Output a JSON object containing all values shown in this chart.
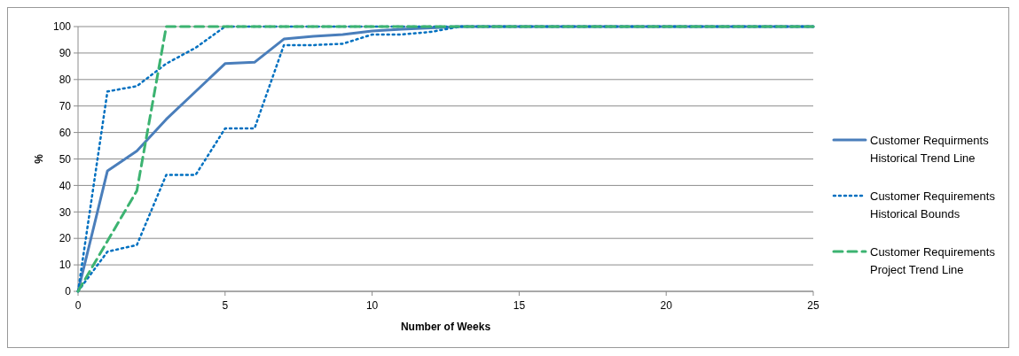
{
  "chart_data": {
    "type": "line",
    "xlabel": "Number of Weeks",
    "ylabel": "%",
    "x": [
      0,
      1,
      2,
      3,
      4,
      5,
      6,
      7,
      8,
      9,
      10,
      11,
      12,
      13,
      14,
      15,
      16,
      17,
      18,
      19,
      20,
      21,
      22,
      23,
      24,
      25
    ],
    "xlim": [
      0,
      25
    ],
    "xticks": [
      0,
      5,
      10,
      15,
      20,
      25
    ],
    "ylim": [
      0,
      100
    ],
    "yticks": [
      0,
      10,
      20,
      30,
      40,
      50,
      60,
      70,
      80,
      90,
      100
    ],
    "grid": "y",
    "legend": "right",
    "series": [
      {
        "name": "Customer Requirments Historical Trend Line",
        "color": "#4a7ebb",
        "line_style": "solid",
        "values": [
          0,
          45.5,
          53,
          65,
          75.5,
          86,
          86.5,
          95.3,
          96.3,
          97,
          98.3,
          99,
          99.5,
          100,
          100,
          100,
          100,
          100,
          100,
          100,
          100,
          100,
          100,
          100,
          100,
          100
        ]
      },
      {
        "name": "Customer Requirements Historical Bounds",
        "color": "#0070c0",
        "line_style": "dotted",
        "values": [
          0,
          75.5,
          77.5,
          86,
          92,
          100,
          100,
          100,
          100,
          100,
          100,
          100,
          100,
          100,
          100,
          100,
          100,
          100,
          100,
          100,
          100,
          100,
          100,
          100,
          100,
          100
        ]
      },
      {
        "color": "#0070c0",
        "line_style": "dotted",
        "values": [
          0,
          15,
          17.5,
          44,
          44,
          61.5,
          61.5,
          93,
          93,
          93.5,
          97,
          97,
          98,
          100,
          100,
          100,
          100,
          100,
          100,
          100,
          100,
          100,
          100,
          100,
          100,
          100
        ]
      },
      {
        "name": "Customer Requirements Project Trend Line",
        "color": "#3cb371",
        "line_style": "dashed",
        "values": [
          0,
          19,
          38,
          100,
          100,
          100,
          100,
          100,
          100,
          100,
          100,
          100,
          100,
          100,
          100,
          100,
          100,
          100,
          100,
          100,
          100,
          100,
          100,
          100,
          100,
          100
        ]
      }
    ]
  }
}
